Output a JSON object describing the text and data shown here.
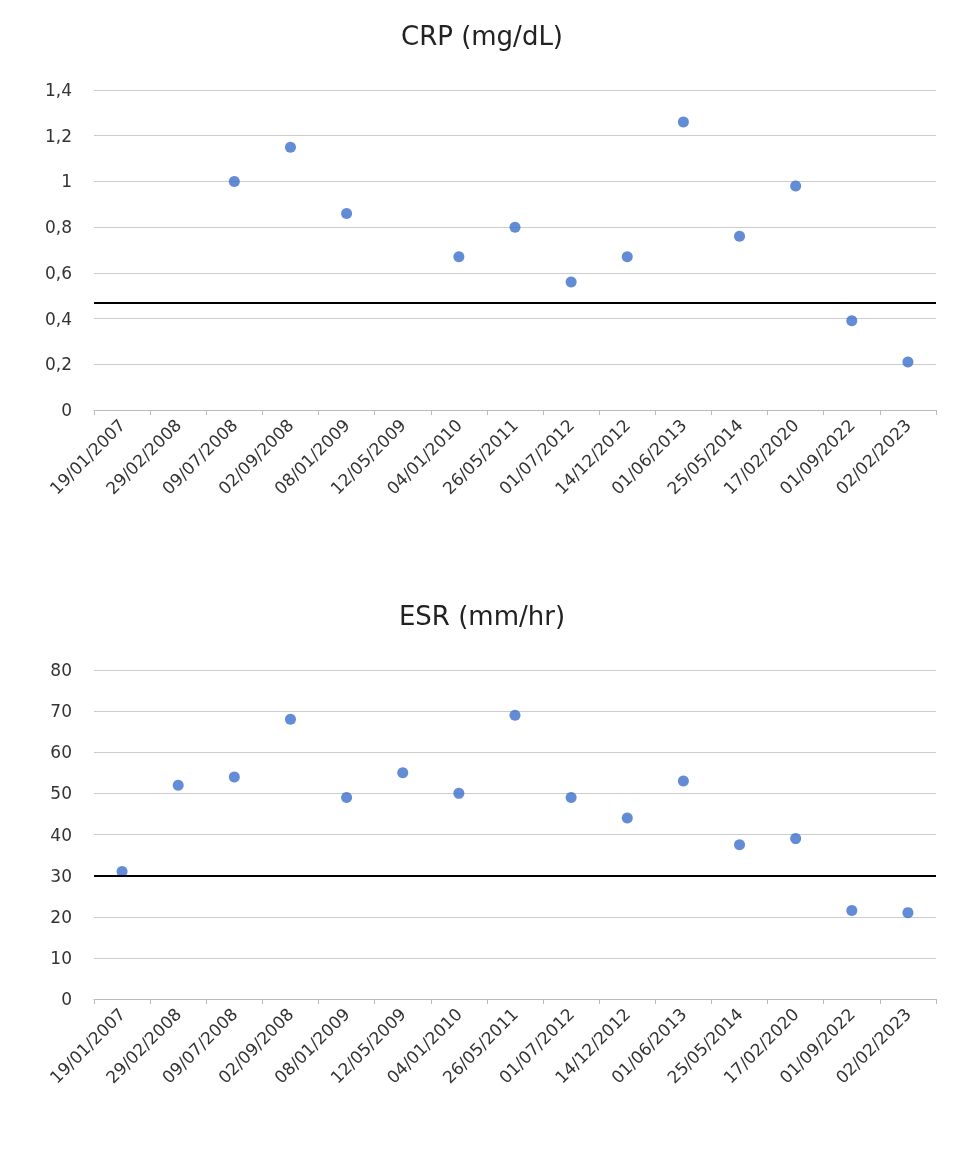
{
  "chart_data": [
    {
      "type": "scatter",
      "title": "CRP (mg/dL)",
      "categories": [
        "19/01/2007",
        "29/02/2008",
        "09/07/2008",
        "02/09/2008",
        "08/01/2009",
        "12/05/2009",
        "04/01/2010",
        "26/05/2011",
        "01/07/2012",
        "14/12/2012",
        "01/06/2013",
        "25/05/2014",
        "17/02/2020",
        "01/09/2022",
        "02/02/2023"
      ],
      "series": [
        {
          "color": "#3b6fcc",
          "values": [
            null,
            null,
            1.0,
            1.15,
            0.86,
            null,
            0.67,
            0.8,
            0.56,
            0.67,
            1.26,
            0.76,
            0.98,
            0.39,
            0.21
          ]
        }
      ],
      "ylim": [
        0,
        1.4
      ],
      "yticks": [
        0,
        {
          "value": 0.2,
          "label": "0,2"
        },
        {
          "value": 0.4,
          "label": "0,4"
        },
        {
          "value": 0.6,
          "label": "0,6"
        },
        {
          "value": 0.8,
          "label": "0,8"
        },
        1,
        {
          "value": 1.2,
          "label": "1,2"
        },
        {
          "value": 1.4,
          "label": "1,4"
        }
      ],
      "ref_lines": [
        {
          "axis": "y",
          "value": 0.47,
          "color": "#000000"
        }
      ],
      "grid": "y",
      "marker": "circle"
    },
    {
      "type": "scatter",
      "title": "ESR (mm/hr)",
      "categories": [
        "19/01/2007",
        "29/02/2008",
        "09/07/2008",
        "02/09/2008",
        "08/01/2009",
        "12/05/2009",
        "04/01/2010",
        "26/05/2011",
        "01/07/2012",
        "14/12/2012",
        "01/06/2013",
        "25/05/2014",
        "17/02/2020",
        "01/09/2022",
        "02/02/2023"
      ],
      "series": [
        {
          "color": "#3b6fcc",
          "values": [
            31,
            52,
            54,
            68,
            49,
            55,
            50,
            69,
            49,
            44,
            53,
            37.5,
            39,
            21.5,
            21
          ]
        }
      ],
      "ylim": [
        0,
        80
      ],
      "yticks": [
        0,
        10,
        20,
        30,
        40,
        50,
        60,
        70,
        80
      ],
      "ref_lines": [
        {
          "axis": "y",
          "value": 30,
          "color": "#000000"
        }
      ],
      "grid": "y",
      "marker": "circle"
    }
  ]
}
